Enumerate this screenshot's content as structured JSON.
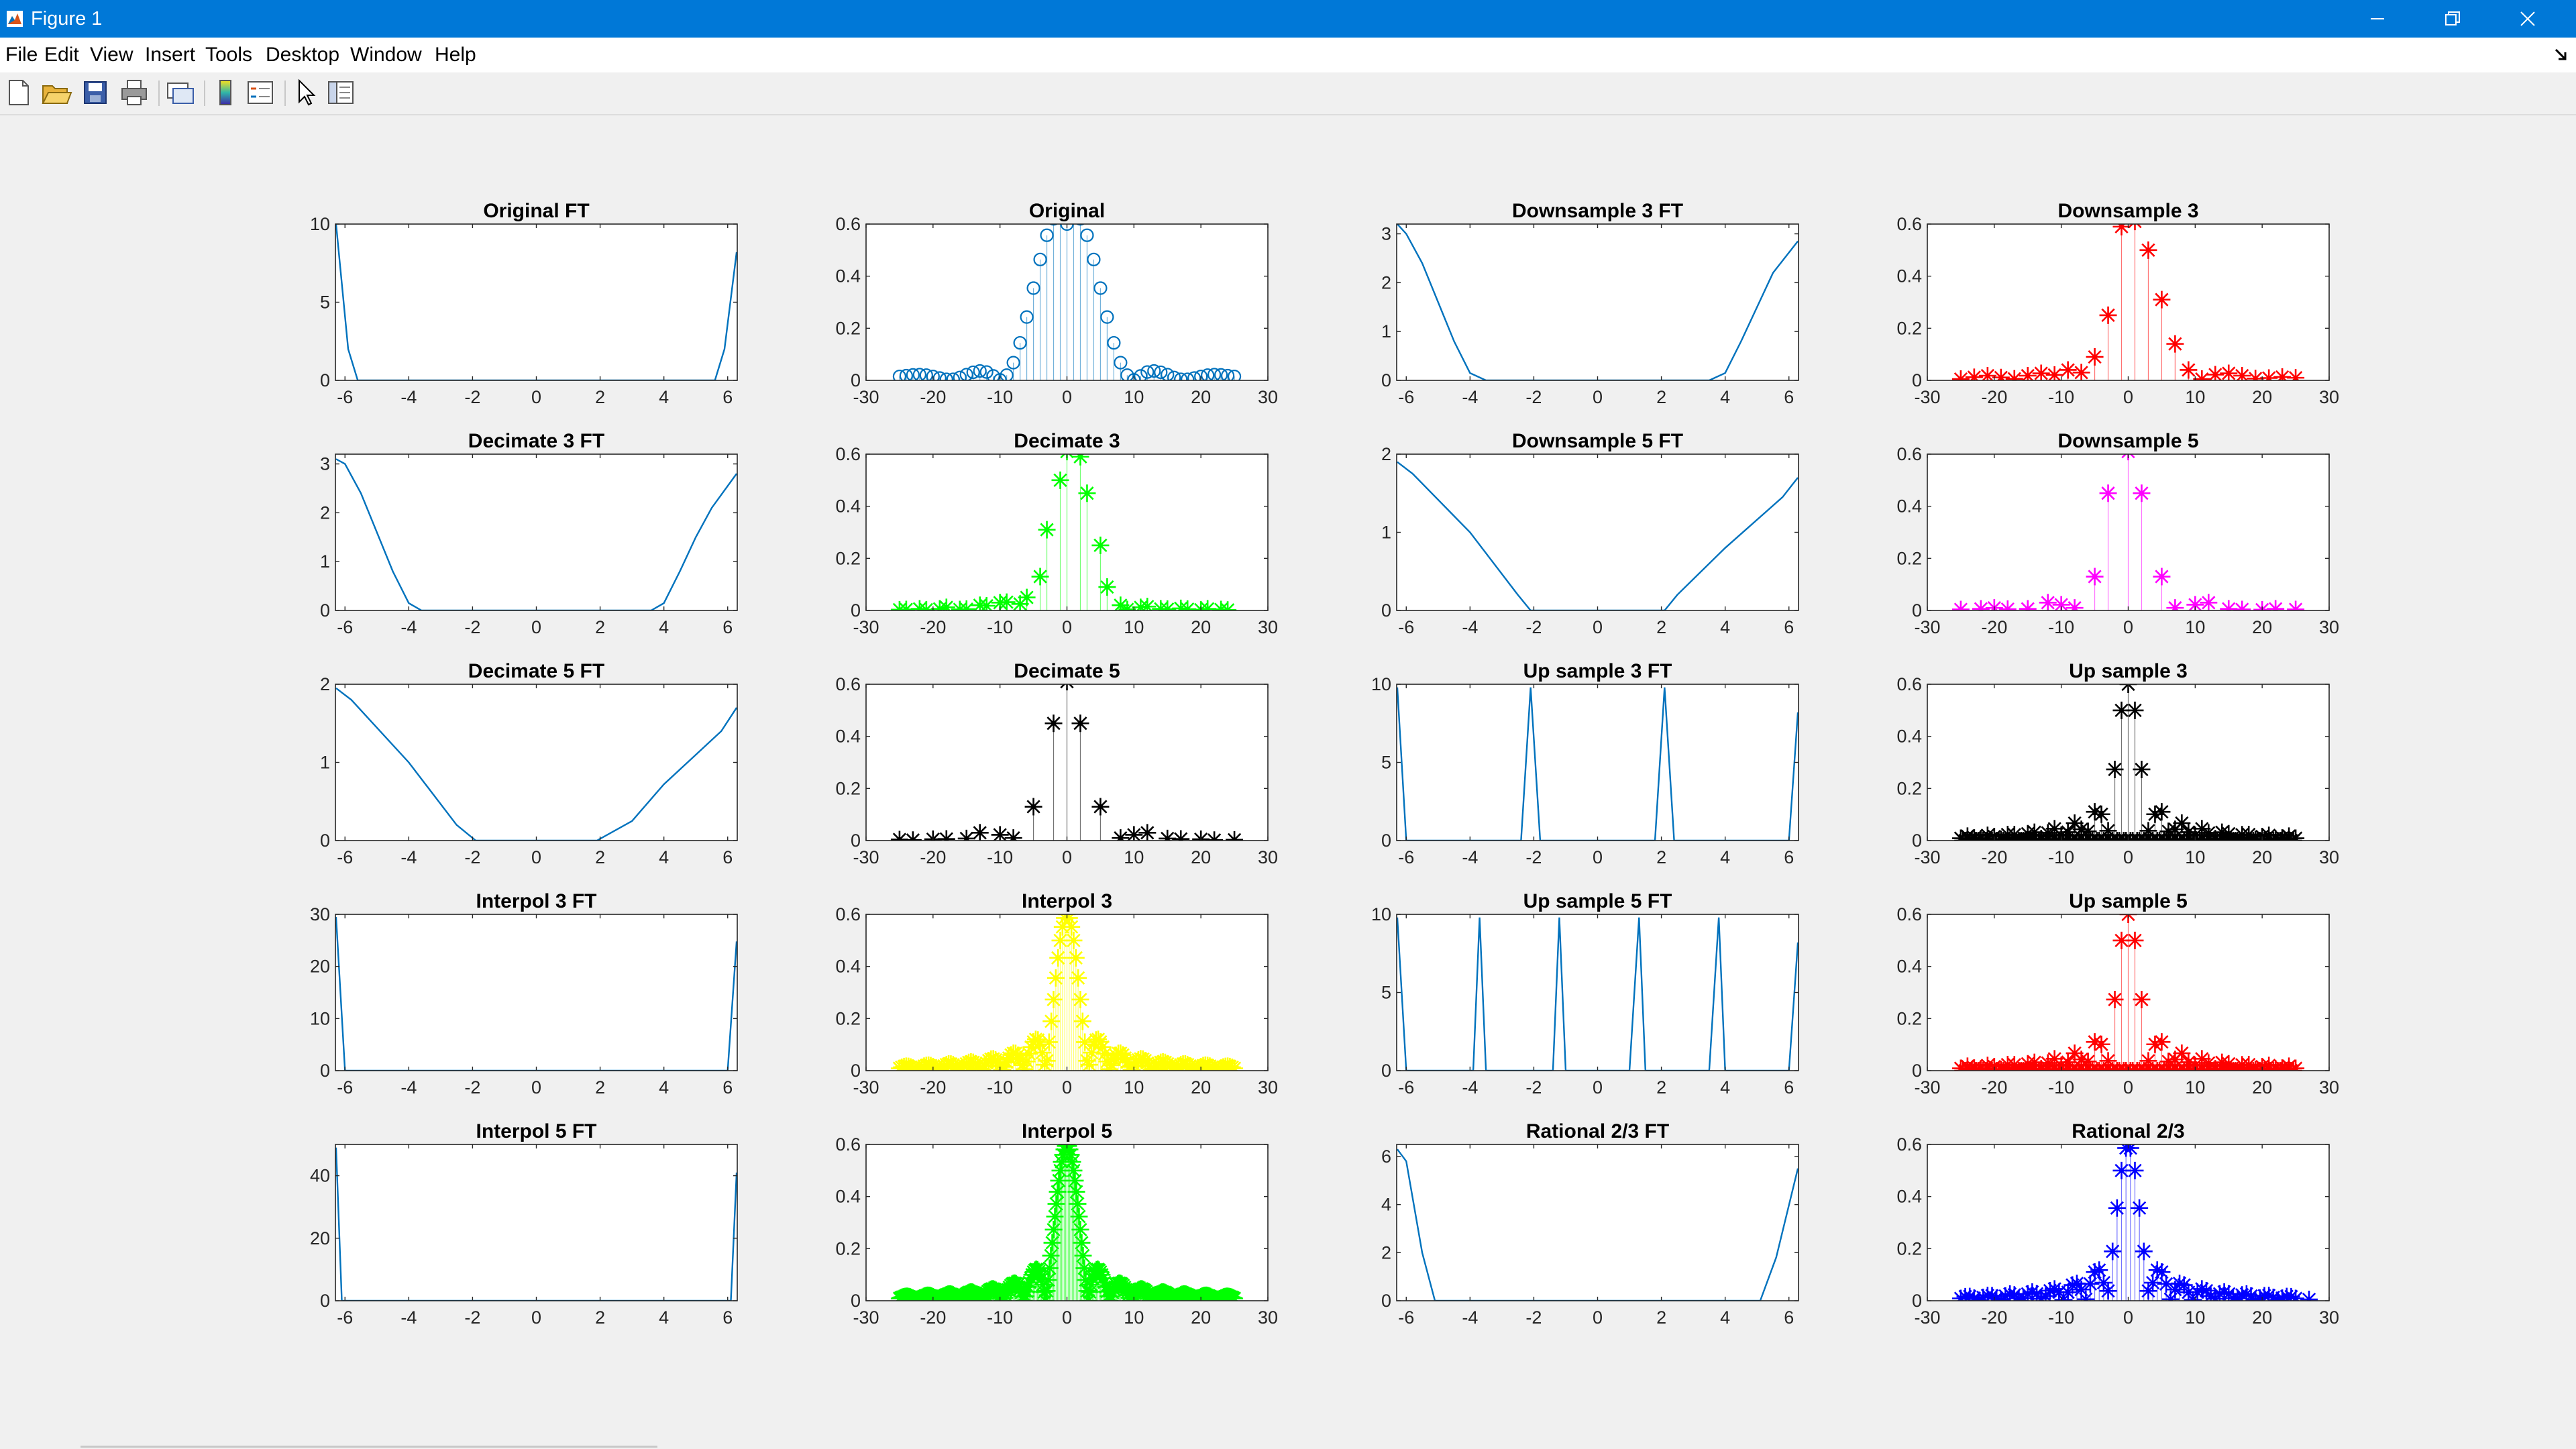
{
  "window": {
    "title": "Figure 1",
    "controls": {
      "minimize": "minimize-icon",
      "restore": "restore-icon",
      "close": "close-icon"
    }
  },
  "menu": [
    "File",
    "Edit",
    "View",
    "Insert",
    "Tools",
    "Desktop",
    "Window",
    "Help"
  ],
  "toolbar": [
    "new-figure-icon",
    "open-file-icon",
    "save-icon",
    "print-icon",
    "link-plot-icon",
    "insert-colorbar-icon",
    "insert-legend-icon",
    "edit-plot-arrow-icon",
    "property-inspector-icon"
  ],
  "colors": {
    "titlebar": "#0078d7",
    "ft_line": "#0072bd",
    "orig_stem": "#0072bd",
    "red": "#ff0000",
    "green": "#00ff00",
    "magenta": "#ff00ff",
    "black": "#000000",
    "yellow": "#ffff00",
    "blue": "#0000ff"
  },
  "chart_data": [
    {
      "type": "line",
      "title": "Original FT",
      "xlim": [
        -6.3,
        6.3
      ],
      "ylim": [
        0,
        10
      ],
      "yticks": [
        0,
        5,
        10
      ],
      "xticks": [
        -6,
        -4,
        -2,
        0,
        2,
        4,
        6
      ],
      "color": "#0072bd",
      "x": [
        -6.28,
        -5.9,
        -5.6,
        5.6,
        5.9,
        6.28
      ],
      "y": [
        10,
        2,
        0,
        0,
        2,
        8.2
      ]
    },
    {
      "type": "stem",
      "title": "Original",
      "xlim": [
        -30,
        30
      ],
      "ylim": [
        0,
        0.6
      ],
      "yticks": [
        0,
        0.2,
        0.4,
        0.6
      ],
      "xticks": [
        -30,
        -20,
        -10,
        0,
        10,
        20,
        30
      ],
      "color": "#0072bd",
      "marker": "o",
      "markersize": 9,
      "x": [
        -25,
        -24,
        -23,
        -22,
        -21,
        -20,
        -19,
        -18,
        -17,
        -16,
        -15,
        -14,
        -13,
        -12,
        -11,
        -10,
        -9,
        -8,
        -7,
        -6,
        -5,
        -4,
        -3,
        -2,
        -1,
        0,
        1,
        2,
        3,
        4,
        5,
        6,
        7,
        8,
        9,
        10,
        11,
        12,
        13,
        14,
        15,
        16,
        17,
        18,
        19,
        20,
        21,
        22,
        23,
        24,
        25
      ],
      "y": [
        0.015,
        0.018,
        0.021,
        0.022,
        0.02,
        0.015,
        0.009,
        0.004,
        0.004,
        0.011,
        0.022,
        0.031,
        0.036,
        0.032,
        0.017,
        0.002,
        0.02,
        0.068,
        0.144,
        0.243,
        0.354,
        0.464,
        0.557,
        0.62,
        0.63,
        0.6,
        0.63,
        0.62,
        0.557,
        0.464,
        0.354,
        0.243,
        0.144,
        0.068,
        0.02,
        0.002,
        0.017,
        0.032,
        0.036,
        0.031,
        0.022,
        0.011,
        0.004,
        0.004,
        0.009,
        0.015,
        0.02,
        0.022,
        0.021,
        0.018,
        0.015
      ]
    },
    {
      "type": "line",
      "title": "Downsample 3 FT",
      "xlim": [
        -6.3,
        6.3
      ],
      "ylim": [
        0,
        3.2
      ],
      "yticks": [
        0,
        1,
        2,
        3
      ],
      "xticks": [
        -6,
        -4,
        -2,
        0,
        2,
        4,
        6
      ],
      "color": "#0072bd",
      "x": [
        -6.28,
        -6,
        -5.5,
        -5,
        -4.5,
        -4,
        -3.5,
        3.5,
        4,
        4.5,
        5,
        5.5,
        6.28
      ],
      "y": [
        3.2,
        3.0,
        2.4,
        1.6,
        0.8,
        0.15,
        0,
        0,
        0.15,
        0.8,
        1.5,
        2.2,
        2.85
      ]
    },
    {
      "type": "stem",
      "title": "Downsample 3",
      "xlim": [
        -30,
        30
      ],
      "ylim": [
        0,
        0.6
      ],
      "yticks": [
        0,
        0.2,
        0.4,
        0.6
      ],
      "xticks": [
        -30,
        -20,
        -10,
        0,
        10,
        20,
        30
      ],
      "color": "#ff0000",
      "marker": "*",
      "markersize": 26,
      "x": [
        -25,
        -23,
        -21,
        -19,
        -17,
        -15,
        -13,
        -11,
        -9,
        -7,
        -5,
        -3,
        -1,
        1,
        3,
        5,
        7,
        9,
        11,
        13,
        15,
        17,
        19,
        21,
        23,
        25
      ],
      "y": [
        0.005,
        0.012,
        0.018,
        0.011,
        0.006,
        0.018,
        0.027,
        0.021,
        0.04,
        0.03,
        0.09,
        0.25,
        0.59,
        0.61,
        0.5,
        0.31,
        0.14,
        0.04,
        0.005,
        0.022,
        0.027,
        0.018,
        0.007,
        0.009,
        0.013,
        0.01
      ]
    },
    {
      "type": "line",
      "title": "Decimate 3 FT",
      "xlim": [
        -6.3,
        6.3
      ],
      "ylim": [
        0,
        3.2
      ],
      "yticks": [
        0,
        1,
        2,
        3
      ],
      "xticks": [
        -6,
        -4,
        -2,
        0,
        2,
        4,
        6
      ],
      "color": "#0072bd",
      "x": [
        -6.28,
        -6,
        -5.5,
        -5,
        -4.5,
        -4,
        -3.6,
        3.6,
        4,
        4.5,
        5,
        5.5,
        6.28
      ],
      "y": [
        3.1,
        3.0,
        2.4,
        1.6,
        0.8,
        0.15,
        0,
        0,
        0.15,
        0.8,
        1.5,
        2.1,
        2.8
      ]
    },
    {
      "type": "stem",
      "title": "Decimate 3",
      "xlim": [
        -30,
        30
      ],
      "ylim": [
        0,
        0.6
      ],
      "yticks": [
        0,
        0.2,
        0.4,
        0.6
      ],
      "xticks": [
        -30,
        -20,
        -10,
        0,
        10,
        20,
        30
      ],
      "color": "#00ff00",
      "marker": "*",
      "markersize": 26,
      "x": [
        -25,
        -24,
        -22,
        -21,
        -19,
        -18,
        -16,
        -15,
        -13,
        -12,
        -10,
        -9,
        -7,
        -6,
        -4,
        -3,
        -1,
        0,
        2,
        3,
        5,
        6,
        8,
        9,
        11,
        12,
        14,
        15,
        17,
        18,
        20,
        21,
        23,
        24
      ],
      "y": [
        0.003,
        0.004,
        0.006,
        0.003,
        0.006,
        0.012,
        0.004,
        0.005,
        0.02,
        0.018,
        0.03,
        0.032,
        0.025,
        0.05,
        0.13,
        0.31,
        0.5,
        0.61,
        0.59,
        0.45,
        0.25,
        0.09,
        0.02,
        0.004,
        0.012,
        0.015,
        0.006,
        0.005,
        0.008,
        0.005,
        0.003,
        0.006,
        0.004,
        0.002
      ]
    },
    {
      "type": "line",
      "title": "Downsample 5 FT",
      "xlim": [
        -6.3,
        6.3
      ],
      "ylim": [
        0,
        2
      ],
      "yticks": [
        0,
        1,
        2
      ],
      "xticks": [
        -6,
        -4,
        -2,
        0,
        2,
        4,
        6
      ],
      "color": "#0072bd",
      "x": [
        -6.28,
        -5.8,
        -4,
        -2.5,
        -2.1,
        2.1,
        2.5,
        4,
        5.8,
        6.28
      ],
      "y": [
        1.9,
        1.75,
        1.0,
        0.2,
        0,
        0,
        0.2,
        0.8,
        1.45,
        1.7
      ]
    },
    {
      "type": "stem",
      "title": "Downsample 5",
      "xlim": [
        -30,
        30
      ],
      "ylim": [
        0,
        0.6
      ],
      "yticks": [
        0,
        0.2,
        0.4,
        0.6
      ],
      "xticks": [
        -30,
        -20,
        -10,
        0,
        10,
        20,
        30
      ],
      "color": "#ff00ff",
      "marker": "*",
      "markersize": 26,
      "x": [
        -25,
        -22,
        -20,
        -18,
        -15,
        -12,
        -10,
        -8,
        -5,
        -3,
        0,
        2,
        5,
        7,
        10,
        12,
        15,
        17,
        20,
        22,
        25
      ],
      "y": [
        0.004,
        0.006,
        0.01,
        0.005,
        0.006,
        0.03,
        0.022,
        0.01,
        0.13,
        0.45,
        0.61,
        0.45,
        0.13,
        0.01,
        0.022,
        0.03,
        0.006,
        0.004,
        0.003,
        0.006,
        0.004
      ]
    },
    {
      "type": "line",
      "title": "Decimate 5 FT",
      "xlim": [
        -6.3,
        6.3
      ],
      "ylim": [
        0,
        2
      ],
      "yticks": [
        0,
        1,
        2
      ],
      "xticks": [
        -6,
        -4,
        -2,
        0,
        2,
        4,
        6
      ],
      "color": "#0072bd",
      "x": [
        -6.28,
        -5.8,
        -4,
        -2.5,
        -1.9,
        1.9,
        3,
        4,
        5.8,
        6.28
      ],
      "y": [
        1.95,
        1.8,
        1.0,
        0.2,
        0,
        0,
        0.25,
        0.72,
        1.4,
        1.7
      ]
    },
    {
      "type": "stem",
      "title": "Decimate 5",
      "xlim": [
        -30,
        30
      ],
      "ylim": [
        0,
        0.6
      ],
      "yticks": [
        0,
        0.2,
        0.4,
        0.6
      ],
      "xticks": [
        -30,
        -20,
        -10,
        0,
        10,
        20,
        30
      ],
      "color": "#000000",
      "marker": "*",
      "markersize": 26,
      "x": [
        -25,
        -23,
        -20,
        -18,
        -15,
        -13,
        -10,
        -8,
        -5,
        -2,
        0,
        2,
        5,
        8,
        10,
        12,
        15,
        17,
        20,
        22,
        25
      ],
      "y": [
        0.004,
        0.002,
        0.005,
        0.006,
        0.008,
        0.03,
        0.022,
        0.01,
        0.13,
        0.45,
        0.61,
        0.45,
        0.13,
        0.01,
        0.022,
        0.03,
        0.008,
        0.006,
        0.005,
        0.002,
        0.003
      ]
    },
    {
      "type": "line",
      "title": "Up sample 3 FT",
      "xlim": [
        -6.3,
        6.3
      ],
      "ylim": [
        0,
        10
      ],
      "yticks": [
        0,
        5,
        10
      ],
      "xticks": [
        -6,
        -4,
        -2,
        0,
        2,
        4,
        6
      ],
      "color": "#0072bd",
      "x": [
        -6.28,
        -6.0,
        -2.4,
        -2.1,
        -1.8,
        1.8,
        2.1,
        2.4,
        6.0,
        6.28
      ],
      "y": [
        9.8,
        0,
        0,
        9.8,
        0,
        0,
        9.8,
        0,
        0,
        8.2
      ]
    },
    {
      "type": "stem",
      "title": "Up sample 3",
      "xlim": [
        -30,
        30
      ],
      "ylim": [
        0,
        0.6
      ],
      "yticks": [
        0,
        0.2,
        0.4,
        0.6
      ],
      "xticks": [
        -30,
        -20,
        -10,
        0,
        10,
        20,
        30
      ],
      "color": "#000000",
      "marker": "*",
      "markersize": 26,
      "interp": "orig"
    },
    {
      "type": "line",
      "title": "Interpol 3 FT",
      "xlim": [
        -6.3,
        6.3
      ],
      "ylim": [
        0,
        30
      ],
      "yticks": [
        0,
        10,
        20,
        30
      ],
      "xticks": [
        -6,
        -4,
        -2,
        0,
        2,
        4,
        6
      ],
      "color": "#0072bd",
      "x": [
        -6.28,
        -6.0,
        6.0,
        6.28
      ],
      "y": [
        29.5,
        0,
        0,
        24.8
      ]
    },
    {
      "type": "stem",
      "title": "Interpol 3",
      "xlim": [
        -30,
        30
      ],
      "ylim": [
        0,
        0.6
      ],
      "yticks": [
        0,
        0.2,
        0.4,
        0.6
      ],
      "xticks": [
        -30,
        -20,
        -10,
        0,
        10,
        20,
        30
      ],
      "color": "#ffff00",
      "marker": "*",
      "markersize": 26,
      "interp": "dense3"
    },
    {
      "type": "line",
      "title": "Up sample 5 FT",
      "xlim": [
        -6.3,
        6.3
      ],
      "ylim": [
        0,
        10
      ],
      "yticks": [
        0,
        5,
        10
      ],
      "xticks": [
        -6,
        -4,
        -2,
        0,
        2,
        4,
        6
      ],
      "color": "#0072bd",
      "x": [
        -6.28,
        -6.0,
        -3.9,
        -3.7,
        -3.5,
        -1.4,
        -1.2,
        -1.0,
        1.0,
        1.3,
        1.5,
        3.5,
        3.8,
        4.0,
        6.0,
        6.28
      ],
      "y": [
        9.8,
        0,
        0,
        9.8,
        0,
        0,
        9.8,
        0,
        0,
        9.8,
        0,
        0,
        9.8,
        0,
        0,
        8.2
      ]
    },
    {
      "type": "stem",
      "title": "Up sample 5",
      "xlim": [
        -30,
        30
      ],
      "ylim": [
        0,
        0.6
      ],
      "yticks": [
        0,
        0.2,
        0.4,
        0.6
      ],
      "xticks": [
        -30,
        -20,
        -10,
        0,
        10,
        20,
        30
      ],
      "color": "#ff0000",
      "marker": "*",
      "markersize": 26,
      "interp": "orig"
    },
    {
      "type": "line",
      "title": "Interpol 5 FT",
      "xlim": [
        -6.3,
        6.3
      ],
      "ylim": [
        0,
        50
      ],
      "yticks": [
        0,
        20,
        40
      ],
      "xticks": [
        -6,
        -4,
        -2,
        0,
        2,
        4,
        6
      ],
      "color": "#0072bd",
      "x": [
        -6.28,
        -6.1,
        6.1,
        6.28
      ],
      "y": [
        49,
        0,
        0,
        41
      ]
    },
    {
      "type": "stem",
      "title": "Interpol 5",
      "xlim": [
        -30,
        30
      ],
      "ylim": [
        0,
        0.6
      ],
      "yticks": [
        0,
        0.2,
        0.4,
        0.6
      ],
      "xticks": [
        -30,
        -20,
        -10,
        0,
        10,
        20,
        30
      ],
      "color": "#00ff00",
      "marker": "*",
      "markersize": 26,
      "interp": "dense5"
    },
    {
      "type": "line",
      "title": "Rational 2/3 FT",
      "xlim": [
        -6.3,
        6.3
      ],
      "ylim": [
        0,
        6.5
      ],
      "yticks": [
        0,
        2,
        4,
        6
      ],
      "xticks": [
        -6,
        -4,
        -2,
        0,
        2,
        4,
        6
      ],
      "color": "#0072bd",
      "x": [
        -6.28,
        -6.0,
        -5.5,
        -5.1,
        5.1,
        5.6,
        6.28
      ],
      "y": [
        6.3,
        5.8,
        2.0,
        0,
        0,
        1.8,
        5.5
      ]
    },
    {
      "type": "stem",
      "title": "Rational 2/3",
      "xlim": [
        -30,
        30
      ],
      "ylim": [
        0,
        0.6
      ],
      "yticks": [
        0,
        0.2,
        0.4,
        0.6
      ],
      "xticks": [
        -30,
        -20,
        -10,
        0,
        10,
        20,
        30
      ],
      "color": "#0000ff",
      "marker": "*",
      "markersize": 26,
      "interp": "orig2",
      "extra_x": [
        27
      ],
      "extra_y": [
        0.005
      ]
    }
  ]
}
